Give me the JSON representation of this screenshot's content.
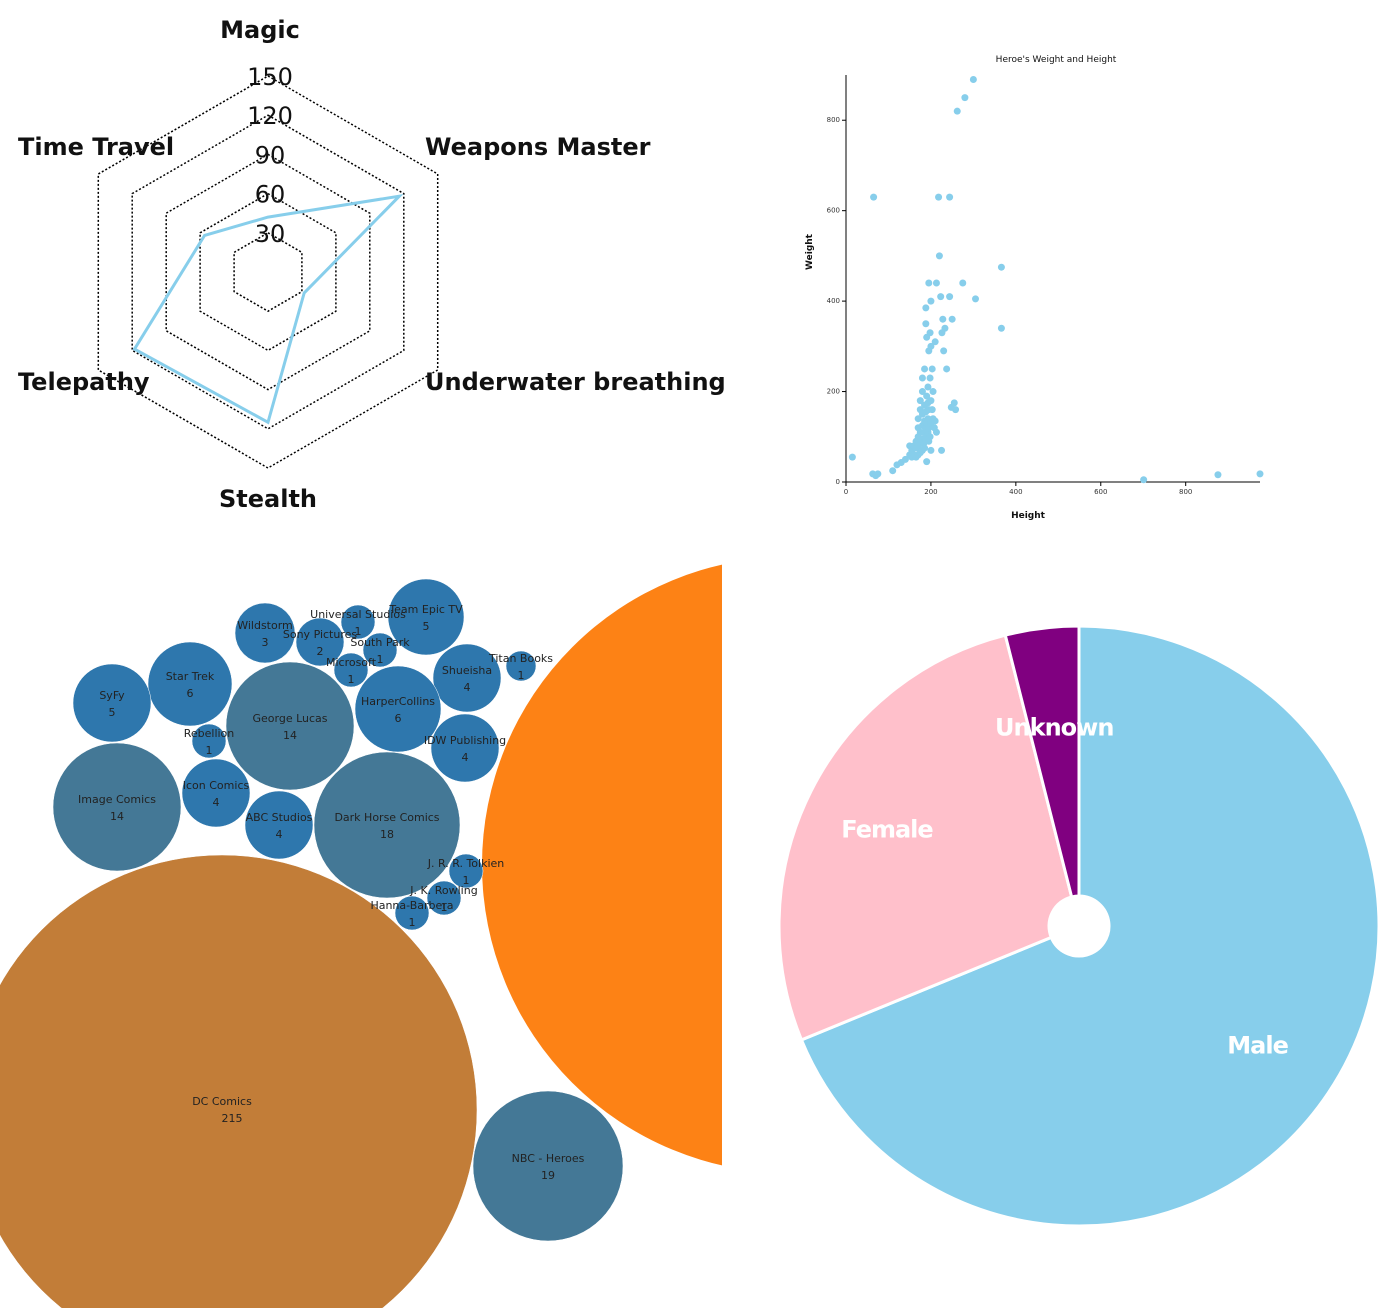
{
  "chart_data": [
    {
      "type": "radar",
      "axes": [
        "Magic",
        "Weapons Master",
        "Underwater breathing",
        "Stealth",
        "Telepathy",
        "Time Travel"
      ],
      "ticks": [
        30,
        60,
        90,
        120,
        150
      ],
      "max": 150,
      "values": [
        42,
        116,
        32,
        115,
        118,
        56
      ],
      "line_color": "#87ceeb"
    },
    {
      "type": "scatter",
      "title": "Heroe's Weight and Height",
      "xlabel": "Height",
      "ylabel": "Weight",
      "xlim": [
        0,
        975
      ],
      "ylim": [
        0,
        900
      ],
      "xticks": [
        0,
        200,
        400,
        600,
        800
      ],
      "yticks": [
        0,
        200,
        400,
        600,
        800
      ],
      "color": "#87ceeb",
      "points": [
        [
          15,
          55
        ],
        [
          63,
          18
        ],
        [
          65,
          630
        ],
        [
          70,
          14
        ],
        [
          75,
          18
        ],
        [
          110,
          25
        ],
        [
          120,
          38
        ],
        [
          130,
          43
        ],
        [
          140,
          50
        ],
        [
          150,
          60
        ],
        [
          150,
          80
        ],
        [
          155,
          55
        ],
        [
          155,
          70
        ],
        [
          160,
          60
        ],
        [
          160,
          80
        ],
        [
          165,
          55
        ],
        [
          165,
          75
        ],
        [
          165,
          90
        ],
        [
          170,
          60
        ],
        [
          170,
          80
        ],
        [
          170,
          100
        ],
        [
          170,
          120
        ],
        [
          170,
          140
        ],
        [
          175,
          65
        ],
        [
          175,
          90
        ],
        [
          175,
          110
        ],
        [
          175,
          160
        ],
        [
          175,
          180
        ],
        [
          180,
          70
        ],
        [
          180,
          95
        ],
        [
          180,
          125
        ],
        [
          180,
          150
        ],
        [
          180,
          200
        ],
        [
          180,
          230
        ],
        [
          183,
          85
        ],
        [
          183,
          110
        ],
        [
          185,
          75
        ],
        [
          185,
          95
        ],
        [
          185,
          135
        ],
        [
          185,
          170
        ],
        [
          185,
          250
        ],
        [
          188,
          90
        ],
        [
          188,
          120
        ],
        [
          188,
          155
        ],
        [
          188,
          350
        ],
        [
          188,
          385
        ],
        [
          190,
          45
        ],
        [
          190,
          100
        ],
        [
          190,
          130
        ],
        [
          190,
          190
        ],
        [
          190,
          320
        ],
        [
          193,
          110
        ],
        [
          193,
          140
        ],
        [
          193,
          175
        ],
        [
          193,
          210
        ],
        [
          195,
          90
        ],
        [
          195,
          120
        ],
        [
          195,
          160
        ],
        [
          195,
          290
        ],
        [
          195,
          440
        ],
        [
          198,
          100
        ],
        [
          198,
          230
        ],
        [
          198,
          330
        ],
        [
          200,
          70
        ],
        [
          200,
          130
        ],
        [
          200,
          180
        ],
        [
          200,
          300
        ],
        [
          200,
          400
        ],
        [
          203,
          160
        ],
        [
          203,
          250
        ],
        [
          205,
          140
        ],
        [
          205,
          200
        ],
        [
          208,
          120
        ],
        [
          210,
          135
        ],
        [
          210,
          310
        ],
        [
          213,
          110
        ],
        [
          213,
          440
        ],
        [
          218,
          630
        ],
        [
          220,
          500
        ],
        [
          223,
          410
        ],
        [
          225,
          70
        ],
        [
          226,
          330
        ],
        [
          228,
          360
        ],
        [
          230,
          290
        ],
        [
          233,
          340
        ],
        [
          237,
          250
        ],
        [
          244,
          630
        ],
        [
          244,
          410
        ],
        [
          248,
          165
        ],
        [
          250,
          360
        ],
        [
          255,
          175
        ],
        [
          258,
          160
        ],
        [
          262,
          820
        ],
        [
          275,
          440
        ],
        [
          280,
          850
        ],
        [
          300,
          890
        ],
        [
          305,
          405
        ],
        [
          366,
          475
        ],
        [
          366,
          340
        ],
        [
          701,
          5
        ],
        [
          876,
          16
        ],
        [
          975,
          18
        ]
      ]
    },
    {
      "type": "bubble",
      "nodes": [
        {
          "name": "Team Epic TV",
          "value": 5
        },
        {
          "name": "Universal Studios",
          "value": 1
        },
        {
          "name": "Wildstorm",
          "value": 3
        },
        {
          "name": "Sony Pictures",
          "value": 2
        },
        {
          "name": "South Park",
          "value": 1
        },
        {
          "name": "Microsoft",
          "value": 1
        },
        {
          "name": "Titan Books",
          "value": 1
        },
        {
          "name": "Star Trek",
          "value": 6
        },
        {
          "name": "Shueisha",
          "value": 4
        },
        {
          "name": "SyFy",
          "value": 5
        },
        {
          "name": "HarperCollins",
          "value": 6
        },
        {
          "name": "George Lucas",
          "value": 14
        },
        {
          "name": "Rebellion",
          "value": 1
        },
        {
          "name": "IDW Publishing",
          "value": 4
        },
        {
          "name": "Icon Comics",
          "value": 4
        },
        {
          "name": "Image Comics",
          "value": 14
        },
        {
          "name": "ABC Studios",
          "value": 4
        },
        {
          "name": "Dark Horse Comics",
          "value": 18
        },
        {
          "name": "J. R. R. Tolkien",
          "value": 1
        },
        {
          "name": "J. K. Rowling",
          "value": 1
        },
        {
          "name": "Hanna-Barbera",
          "value": 1
        },
        {
          "name": "DC Comics",
          "value": 215
        },
        {
          "name": "NBC - Heroes",
          "value": 19
        }
      ],
      "colors": {
        "small": "#2e77ad",
        "medium": "#447896",
        "dc": "#c27d38",
        "marvel": "#fd8215"
      }
    },
    {
      "type": "pie",
      "slices": [
        {
          "label": "Male",
          "value": 505,
          "color": "#87ceeb"
        },
        {
          "label": "Female",
          "value": 200,
          "color": "#ffc0cb"
        },
        {
          "label": "Unknown",
          "value": 29,
          "color": "#800080"
        }
      ]
    }
  ]
}
